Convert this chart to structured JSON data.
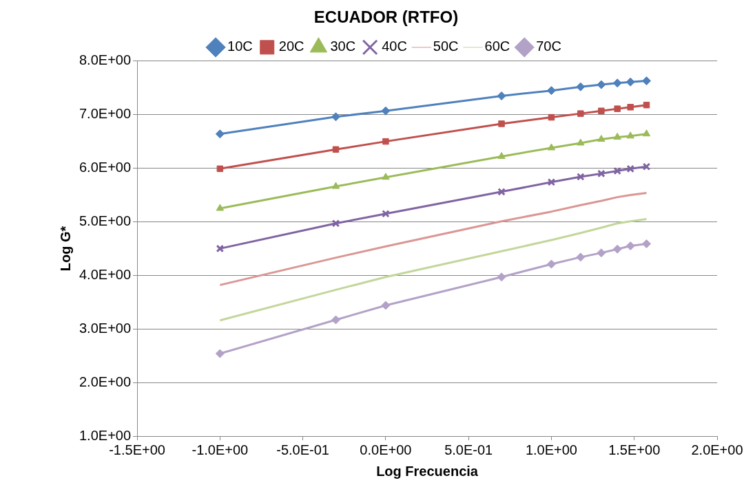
{
  "chart_data": {
    "type": "line",
    "title": "ECUADOR (RTFO)",
    "xlabel": "Log Frecuencia",
    "ylabel": "Log G*",
    "x": [
      -1,
      -0.301,
      0,
      0.699,
      1,
      1.176,
      1.301,
      1.398,
      1.477,
      1.574
    ],
    "series": [
      {
        "name": "10C",
        "color": "#4f81bd",
        "marker": "diamond",
        "values": [
          6.64,
          6.96,
          7.07,
          7.35,
          7.45,
          7.52,
          7.56,
          7.59,
          7.61,
          7.63
        ]
      },
      {
        "name": "20C",
        "color": "#c0504d",
        "marker": "square",
        "values": [
          5.99,
          6.35,
          6.5,
          6.83,
          6.95,
          7.02,
          7.07,
          7.11,
          7.14,
          7.18
        ]
      },
      {
        "name": "30C",
        "color": "#9bbb59",
        "marker": "triangle",
        "values": [
          5.25,
          5.66,
          5.83,
          6.22,
          6.38,
          6.47,
          6.54,
          6.58,
          6.6,
          6.64
        ]
      },
      {
        "name": "40C",
        "color": "#8064a2",
        "marker": "cross",
        "values": [
          4.5,
          4.97,
          5.15,
          5.56,
          5.74,
          5.84,
          5.9,
          5.95,
          5.99,
          6.03
        ]
      },
      {
        "name": "50C",
        "color": "#da9694",
        "marker": "none",
        "values": [
          3.82,
          4.33,
          4.54,
          5.01,
          5.19,
          5.31,
          5.39,
          5.46,
          5.5,
          5.54
        ]
      },
      {
        "name": "60C",
        "color": "#c3d69b",
        "marker": "none",
        "values": [
          3.16,
          3.73,
          3.97,
          4.45,
          4.66,
          4.79,
          4.89,
          4.97,
          5.01,
          5.05
        ]
      },
      {
        "name": "70C",
        "color": "#b3a2c7",
        "marker": "diamond",
        "values": [
          2.54,
          3.17,
          3.44,
          3.97,
          4.21,
          4.34,
          4.42,
          4.49,
          4.55,
          4.59
        ]
      }
    ],
    "xlim": [
      -1.5,
      2
    ],
    "xticks": [
      {
        "value": -1.5,
        "label": "-1.5E+00"
      },
      {
        "value": -1,
        "label": "-1.0E+00"
      },
      {
        "value": -0.5,
        "label": "-5.0E-01"
      },
      {
        "value": 0,
        "label": "0.0E+00"
      },
      {
        "value": 0.5,
        "label": "5.0E-01"
      },
      {
        "value": 1,
        "label": "1.0E+00"
      },
      {
        "value": 1.5,
        "label": "1.5E+00"
      },
      {
        "value": 2,
        "label": "2.0E+00"
      }
    ],
    "ylim": [
      1,
      8
    ],
    "yticks": [
      {
        "value": 1,
        "label": "1.0E+00"
      },
      {
        "value": 2,
        "label": "2.0E+00"
      },
      {
        "value": 3,
        "label": "3.0E+00"
      },
      {
        "value": 4,
        "label": "4.0E+00"
      },
      {
        "value": 5,
        "label": "5.0E+00"
      },
      {
        "value": 6,
        "label": "6.0E+00"
      },
      {
        "value": 7,
        "label": "7.0E+00"
      },
      {
        "value": 8,
        "label": "8.0E+00"
      }
    ],
    "grid": "y",
    "legend": "top"
  }
}
